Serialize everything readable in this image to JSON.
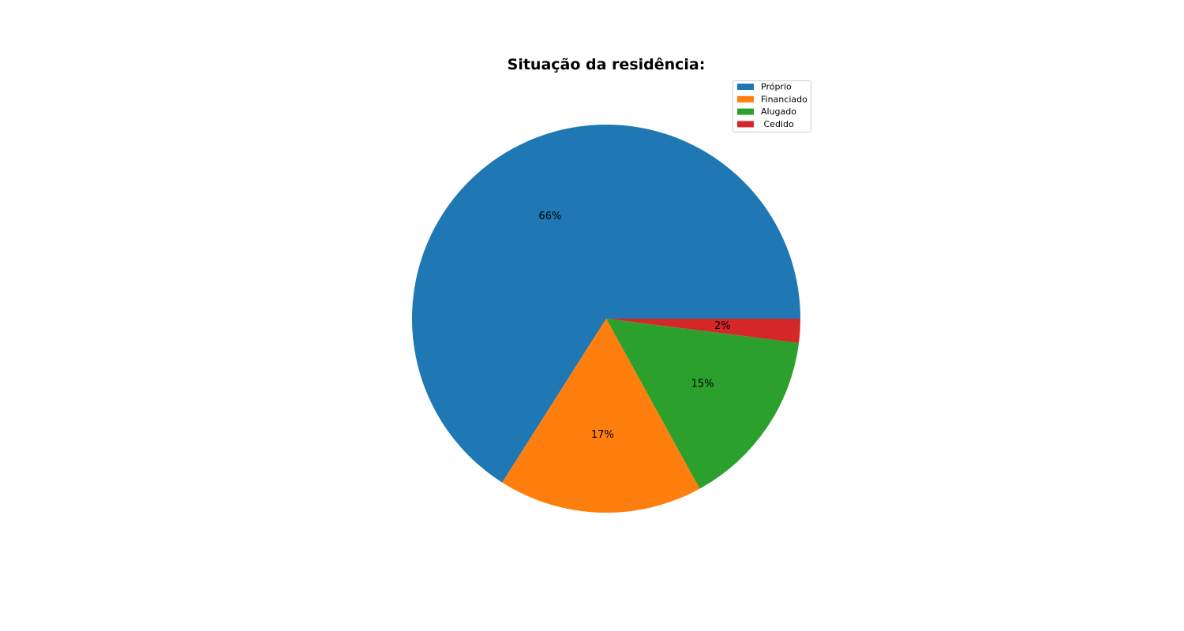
{
  "chart_data": {
    "type": "pie",
    "title": "Situação da residência:",
    "slices": [
      {
        "label": "Próprio",
        "value": 66,
        "pct_label": "66%",
        "color": "#1f77b4"
      },
      {
        "label": "Financiado",
        "value": 17,
        "pct_label": "17%",
        "color": "#ff7f0e"
      },
      {
        "label": "Alugado",
        "value": 15,
        "pct_label": "15%",
        "color": "#2ca02c"
      },
      {
        "label": " Cedido",
        "value": 2,
        "pct_label": "2%",
        "color": "#d62728"
      }
    ],
    "start_angle_deg": 0,
    "direction": "counterclockwise",
    "legend_position": "top-right"
  }
}
